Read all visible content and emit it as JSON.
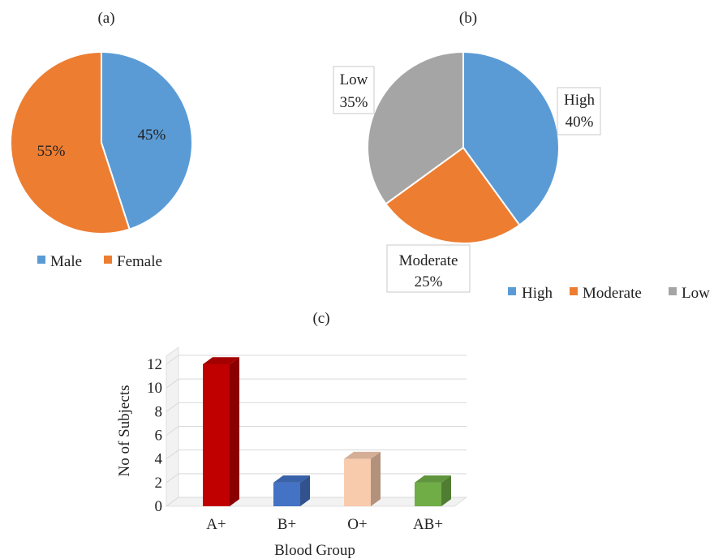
{
  "chart_data": [
    {
      "type": "pie",
      "panel_label": "(a)",
      "slices": [
        {
          "label": "Male",
          "value": 45,
          "display": "45%",
          "color": "#5b9bd5"
        },
        {
          "label": "Female",
          "value": 55,
          "display": "55%",
          "color": "#ed7d31"
        }
      ],
      "legend": {
        "position": "bottom",
        "entries": [
          "Male",
          "Female"
        ]
      }
    },
    {
      "type": "pie",
      "panel_label": "(b)",
      "slices": [
        {
          "label": "High",
          "value": 40,
          "display": "40%",
          "color": "#5b9bd5"
        },
        {
          "label": "Moderate",
          "value": 25,
          "display": "25%",
          "color": "#ed7d31"
        },
        {
          "label": "Low",
          "value": 35,
          "display": "35%",
          "color": "#a5a5a5"
        }
      ],
      "legend": {
        "position": "bottom-right",
        "entries": [
          "High",
          "Moderate",
          "Low"
        ]
      }
    },
    {
      "type": "bar",
      "style": "3d",
      "panel_label": "(c)",
      "categories": [
        "A+",
        "B+",
        "O+",
        "AB+"
      ],
      "values": [
        12,
        2,
        4,
        2
      ],
      "colors": [
        "#c00000",
        "#4472c4",
        "#f8cbad",
        "#70ad47"
      ],
      "xlabel": "Blood Group",
      "ylabel": "No of Subjects",
      "ylim": [
        0,
        12
      ],
      "yticks": [
        0,
        2,
        4,
        6,
        8,
        10,
        12
      ],
      "grid": true
    }
  ]
}
